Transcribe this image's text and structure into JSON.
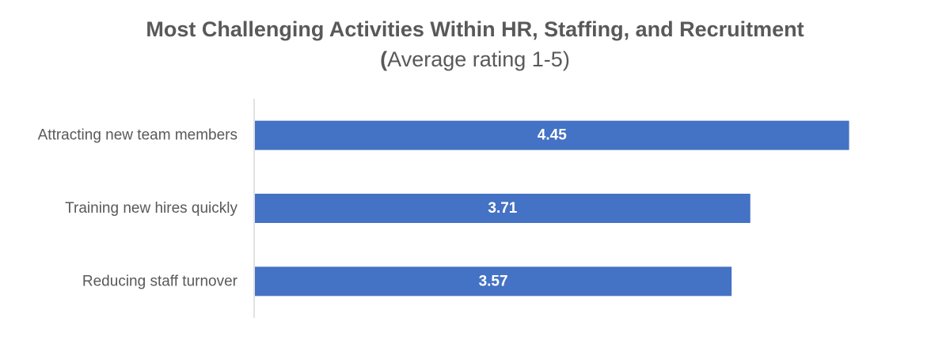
{
  "chart_data": {
    "type": "bar",
    "orientation": "horizontal",
    "title": "Most Challenging Activities Within HR, Staffing, and Recruitment",
    "subtitle_paren": "(",
    "subtitle_rest": "Average rating 1-5)",
    "categories": [
      "Attracting new team members",
      "Training new hires quickly",
      "Reducing staff turnover"
    ],
    "values": [
      4.45,
      3.71,
      3.57
    ],
    "data_labels": [
      "4.45",
      "3.71",
      "3.57"
    ],
    "xlim": [
      0,
      4.5
    ],
    "grid": false,
    "legend": "none",
    "colors": {
      "bar": "#4472C4",
      "axis": "#D9D9D9",
      "text": "#595959",
      "label": "#FFFFFF"
    }
  }
}
